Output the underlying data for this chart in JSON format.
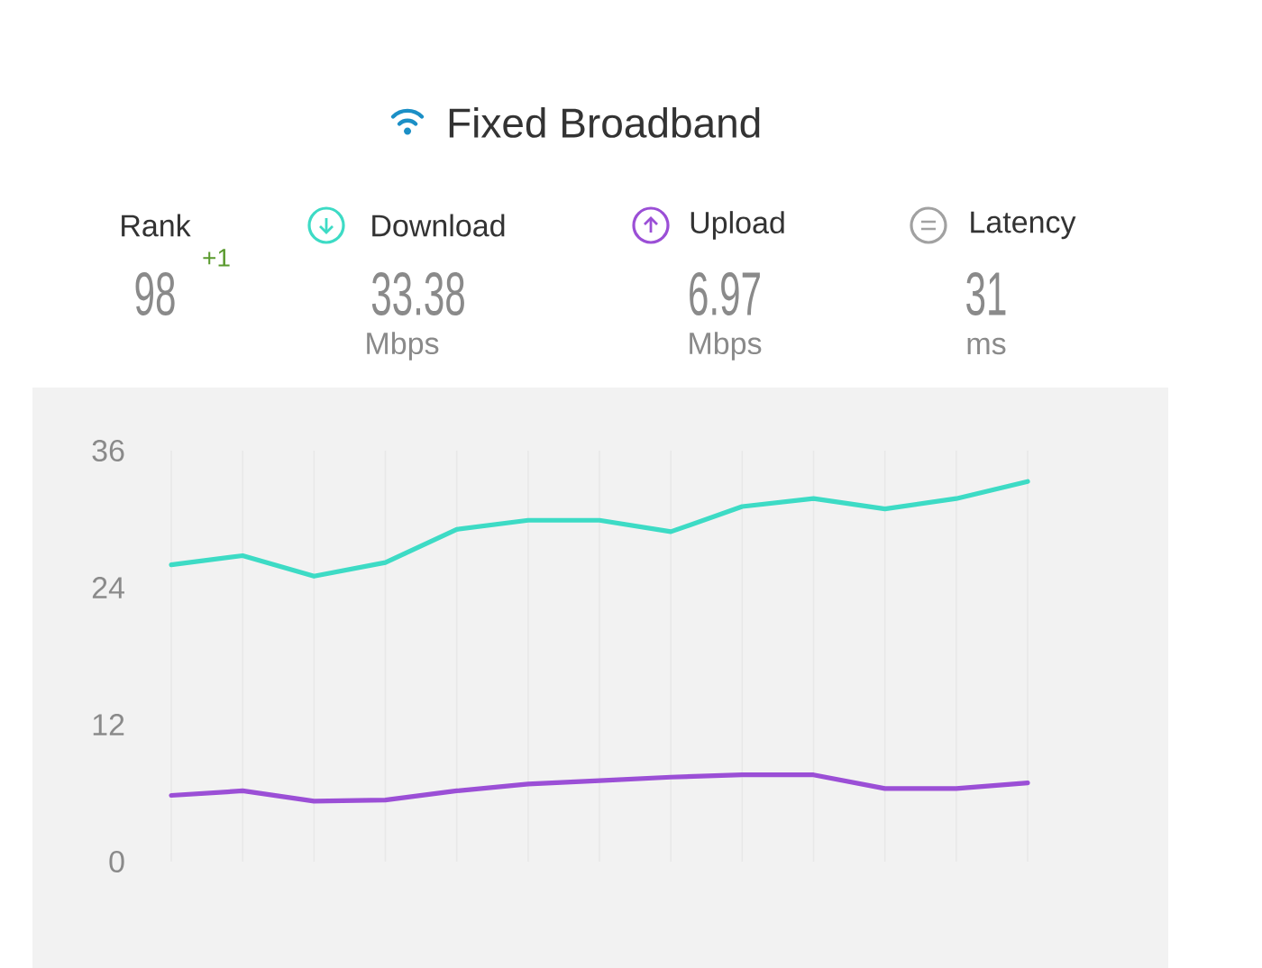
{
  "chart_data": {
    "type": "line",
    "title": "Fixed Broadband",
    "categories": [
      null,
      null,
      null,
      null,
      null,
      null,
      null,
      null,
      null,
      null,
      null,
      null,
      null
    ],
    "series": [
      {
        "name": "Download",
        "color": "#3ddbc5",
        "values": [
          26.0,
          26.8,
          25.0,
          26.2,
          29.1,
          29.9,
          29.9,
          28.9,
          31.1,
          31.8,
          30.9,
          31.8,
          33.3
        ]
      },
      {
        "name": "Upload",
        "color": "#9b4fd6",
        "values": [
          5.8,
          6.2,
          5.3,
          5.4,
          6.2,
          6.8,
          7.1,
          7.4,
          7.6,
          7.6,
          6.4,
          6.4,
          6.9
        ]
      }
    ],
    "annotations": [
      "Rank",
      "98",
      "+1",
      "33.38",
      "Mbps",
      "6.97",
      "Mbps",
      "Latency",
      "31",
      "ms"
    ],
    "ylim": [
      0,
      36
    ],
    "yticks": [
      0,
      12,
      24,
      36
    ],
    "grid": "x",
    "legend": "top",
    "tick_labels": "y",
    "line_style": "solid"
  }
}
